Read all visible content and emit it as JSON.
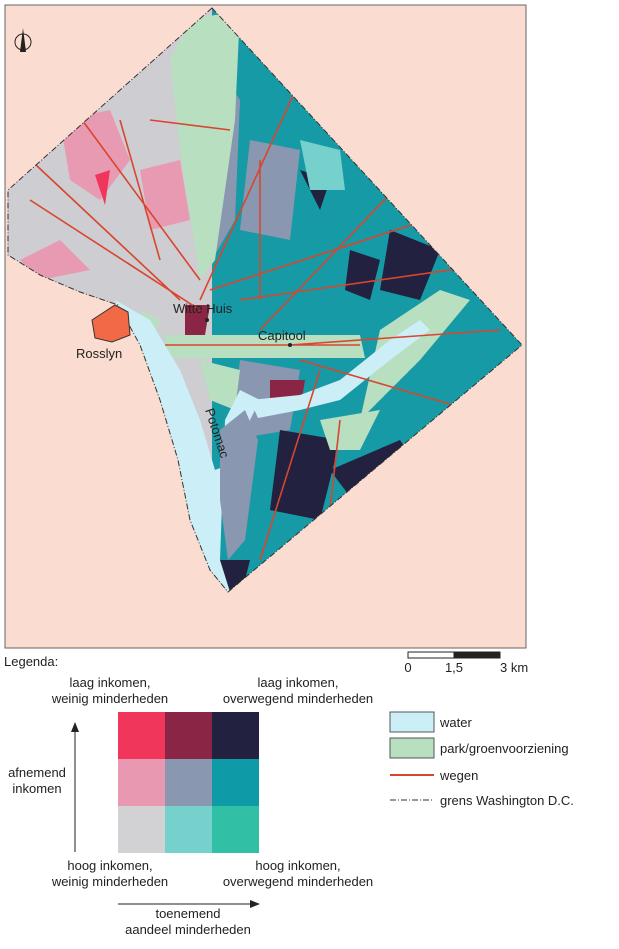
{
  "map": {
    "labels": {
      "white_house": "Witte Huis",
      "capitol": "Capitool",
      "rosslyn": "Rosslyn",
      "river": "Potomac"
    },
    "scale": [
      "0",
      "1,5",
      "3 km"
    ]
  },
  "legend": {
    "title": "Legenda:",
    "top_left": [
      "laag inkomen,",
      "weinig minderheden"
    ],
    "top_right": [
      "laag inkomen,",
      "overwegend minderheden"
    ],
    "bottom_left": [
      "hoog inkomen,",
      "weinig minderheden"
    ],
    "bottom_right": [
      "hoog inkomen,",
      "overwegend minderheden"
    ],
    "y_axis": [
      "afnemend",
      "inkomen"
    ],
    "x_axis": [
      "toenemend",
      "aandeel minderheden"
    ],
    "items": [
      "water",
      "park/groenvoorziening",
      "wegen",
      "grens Washington D.C."
    ]
  }
}
